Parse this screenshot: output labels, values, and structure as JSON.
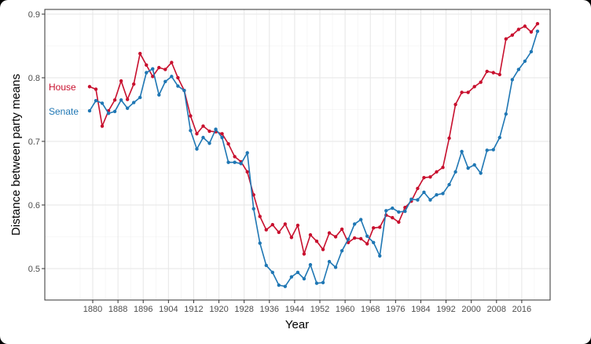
{
  "chart_data": {
    "type": "line",
    "title": "",
    "xlabel": "Year",
    "ylabel": "Distance between party means",
    "xlim": [
      1864.8,
      2025
    ],
    "ylim": [
      0.4506,
      0.9074
    ],
    "xticks": [
      1880,
      1888,
      1896,
      1904,
      1912,
      1920,
      1928,
      1936,
      1944,
      1952,
      1960,
      1968,
      1976,
      1984,
      1992,
      2000,
      2008,
      2016
    ],
    "yticks": [
      0.5,
      0.6,
      0.7,
      0.8,
      0.9
    ],
    "ytick_labels": [
      "0.5",
      "0.6",
      "0.7",
      "0.8",
      "0.9"
    ],
    "grid": true,
    "legend": "direct labels at left",
    "x_start": 1879,
    "x_step": 2,
    "series": [
      {
        "name": "House",
        "color": "#c8102e",
        "values": [
          0.786,
          0.782,
          0.724,
          0.748,
          0.765,
          0.795,
          0.766,
          0.79,
          0.838,
          0.82,
          0.802,
          0.816,
          0.813,
          0.824,
          0.8,
          0.78,
          0.74,
          0.712,
          0.724,
          0.716,
          0.715,
          0.712,
          0.696,
          0.676,
          0.668,
          0.652,
          0.616,
          0.582,
          0.561,
          0.569,
          0.557,
          0.57,
          0.549,
          0.568,
          0.523,
          0.553,
          0.543,
          0.53,
          0.556,
          0.55,
          0.562,
          0.541,
          0.548,
          0.547,
          0.539,
          0.564,
          0.565,
          0.584,
          0.58,
          0.573,
          0.596,
          0.606,
          0.626,
          0.643,
          0.644,
          0.652,
          0.659,
          0.705,
          0.758,
          0.777,
          0.777,
          0.786,
          0.793,
          0.81,
          0.808,
          0.805,
          0.861,
          0.867,
          0.876,
          0.881,
          0.872,
          0.885
        ]
      },
      {
        "name": "Senate",
        "color": "#1f77b4",
        "values": [
          0.748,
          0.764,
          0.76,
          0.744,
          0.747,
          0.765,
          0.752,
          0.761,
          0.769,
          0.808,
          0.814,
          0.773,
          0.794,
          0.802,
          0.787,
          0.78,
          0.717,
          0.688,
          0.706,
          0.697,
          0.719,
          0.706,
          0.667,
          0.667,
          0.665,
          0.682,
          0.594,
          0.54,
          0.505,
          0.494,
          0.474,
          0.472,
          0.487,
          0.494,
          0.484,
          0.506,
          0.477,
          0.478,
          0.511,
          0.502,
          0.528,
          0.546,
          0.57,
          0.577,
          0.551,
          0.541,
          0.52,
          0.591,
          0.595,
          0.589,
          0.59,
          0.609,
          0.608,
          0.62,
          0.608,
          0.616,
          0.618,
          0.632,
          0.652,
          0.684,
          0.658,
          0.663,
          0.65,
          0.686,
          0.687,
          0.706,
          0.743,
          0.797,
          0.813,
          0.826,
          0.841,
          0.873
        ]
      }
    ]
  }
}
